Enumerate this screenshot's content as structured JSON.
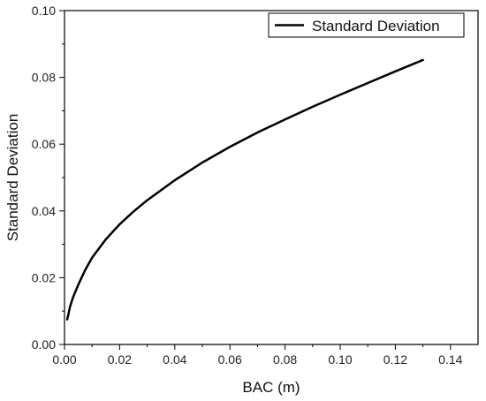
{
  "chart_data": {
    "type": "line",
    "xlabel": "BAC (m)",
    "ylabel": "Standard Deviation",
    "xlim": [
      0,
      0.15
    ],
    "ylim": [
      0,
      0.1
    ],
    "xticks": [
      "0.00",
      "0.02",
      "0.04",
      "0.06",
      "0.08",
      "0.10",
      "0.12",
      "0.14"
    ],
    "yticks": [
      "0.00",
      "0.02",
      "0.04",
      "0.06",
      "0.08",
      "0.10"
    ],
    "grid": false,
    "legend": "top-right",
    "series": [
      {
        "name": "Standard Deviation",
        "color": "#000000",
        "x": [
          0.001,
          0.002,
          0.003,
          0.005,
          0.0075,
          0.01,
          0.015,
          0.02,
          0.025,
          0.03,
          0.04,
          0.05,
          0.06,
          0.07,
          0.08,
          0.09,
          0.1,
          0.11,
          0.12,
          0.13
        ],
        "y": [
          0.0075,
          0.0113,
          0.0139,
          0.0179,
          0.0223,
          0.026,
          0.0315,
          0.036,
          0.0398,
          0.0432,
          0.0492,
          0.0545,
          0.0592,
          0.0635,
          0.0674,
          0.0712,
          0.0748,
          0.0783,
          0.0818,
          0.0852
        ]
      }
    ]
  }
}
